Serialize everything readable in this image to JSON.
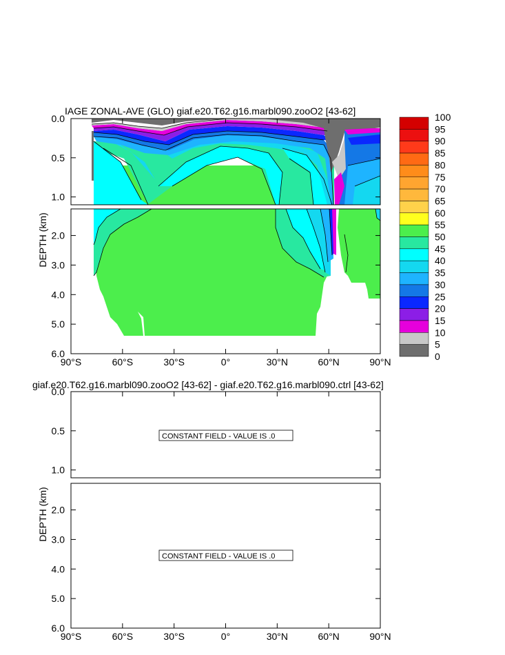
{
  "panels": [
    {
      "title": "IAGE ZONAL-AVE (GLO) giaf.e20.T62.g16.marbl090.zooO2 [43-62]",
      "ylabel": "DEPTH (km)",
      "xticks": [
        "90°S",
        "60°S",
        "30°S",
        "0°",
        "30°N",
        "60°N",
        "90°N"
      ],
      "yticks_upper": [
        "0.0",
        "0.5",
        "1.0"
      ],
      "yticks_lower": [
        "2.0",
        "3.0",
        "4.0",
        "5.0",
        "6.0"
      ],
      "annotation": ""
    },
    {
      "title": "giaf.e20.T62.g16.marbl090.zooO2 [43-62] - giaf.e20.T62.g16.marbl090.ctrl [43-62]",
      "ylabel": "DEPTH (km)",
      "xticks": [
        "90°S",
        "60°S",
        "30°S",
        "0°",
        "30°N",
        "60°N",
        "90°N"
      ],
      "yticks_upper": [
        "0.0",
        "0.5",
        "1.0"
      ],
      "yticks_lower": [
        "2.0",
        "3.0",
        "4.0",
        "5.0",
        "6.0"
      ],
      "annotation_upper": "CONSTANT FIELD - VALUE IS .0",
      "annotation_lower": "CONSTANT FIELD - VALUE IS .0"
    }
  ],
  "colorbar": {
    "levels": [
      "100",
      "95",
      "90",
      "85",
      "80",
      "75",
      "70",
      "65",
      "60",
      "55",
      "50",
      "45",
      "40",
      "35",
      "30",
      "25",
      "20",
      "15",
      "10",
      "5",
      "0"
    ],
    "colors": [
      "#d40000",
      "#ec1010",
      "#ff3a1a",
      "#ff6a14",
      "#ff8c1a",
      "#ffa530",
      "#ffb83c",
      "#ffd24a",
      "#ffff1e",
      "#4cee4c",
      "#28e8a0",
      "#00ffff",
      "#14d8f0",
      "#1eb4ff",
      "#1478e6",
      "#0a28ff",
      "#8c1ee6",
      "#e600dc",
      "#c8c8c8",
      "#6e6e6e"
    ]
  },
  "chart_data": [
    {
      "type": "heatmap",
      "title": "IAGE ZONAL-AVE (GLO) giaf.e20.T62.g16.marbl090.zooO2 [43-62]",
      "xlabel": "",
      "ylabel": "DEPTH (km)",
      "x_range": [
        "90°S",
        "90°N"
      ],
      "y_range_km": [
        6.0,
        0.0
      ],
      "depth_axis_break_km": [
        1.1,
        1.5
      ],
      "contour_levels": [
        0,
        5,
        10,
        15,
        20,
        25,
        30,
        35,
        40,
        45,
        50,
        55,
        60,
        65,
        70,
        75,
        80,
        85,
        90,
        95,
        100
      ],
      "legend_placement": "right"
    },
    {
      "type": "heatmap",
      "title": "giaf.e20.T62.g16.marbl090.zooO2 [43-62] - giaf.e20.T62.g16.marbl090.ctrl [43-62]",
      "ylabel": "DEPTH (km)",
      "x_range": [
        "90°S",
        "90°N"
      ],
      "y_range_km": [
        6.0,
        0.0
      ],
      "constant_value": 0.0
    }
  ]
}
